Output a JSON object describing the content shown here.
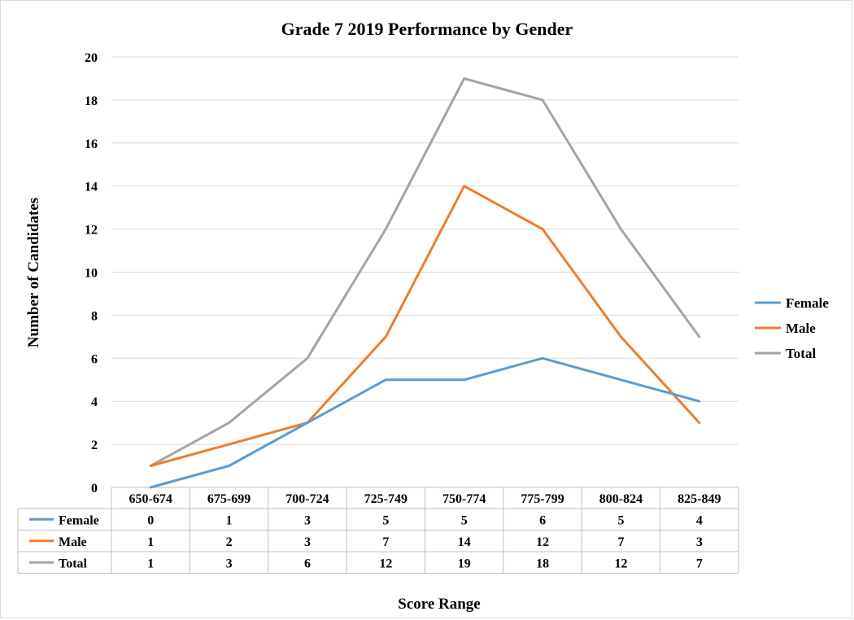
{
  "chart_data": {
    "type": "line",
    "title": "Grade 7 2019 Performance by Gender",
    "xlabel": "Score Range",
    "ylabel": "Number of Candidates",
    "categories": [
      "650-674",
      "675-699",
      "700-724",
      "725-749",
      "750-774",
      "775-799",
      "800-824",
      "825-849"
    ],
    "series": [
      {
        "name": "Female",
        "color": "#5b9bd5",
        "values": [
          0,
          1,
          3,
          5,
          5,
          6,
          5,
          4
        ]
      },
      {
        "name": "Male",
        "color": "#ed7d31",
        "values": [
          1,
          2,
          3,
          7,
          14,
          12,
          7,
          3
        ]
      },
      {
        "name": "Total",
        "color": "#a5a5a5",
        "values": [
          1,
          3,
          6,
          12,
          19,
          18,
          12,
          7
        ]
      }
    ],
    "ylim": [
      0,
      20
    ],
    "yticks": [
      0,
      2,
      4,
      6,
      8,
      10,
      12,
      14,
      16,
      18,
      20
    ],
    "grid": true,
    "legend": "right",
    "data_table": true
  }
}
